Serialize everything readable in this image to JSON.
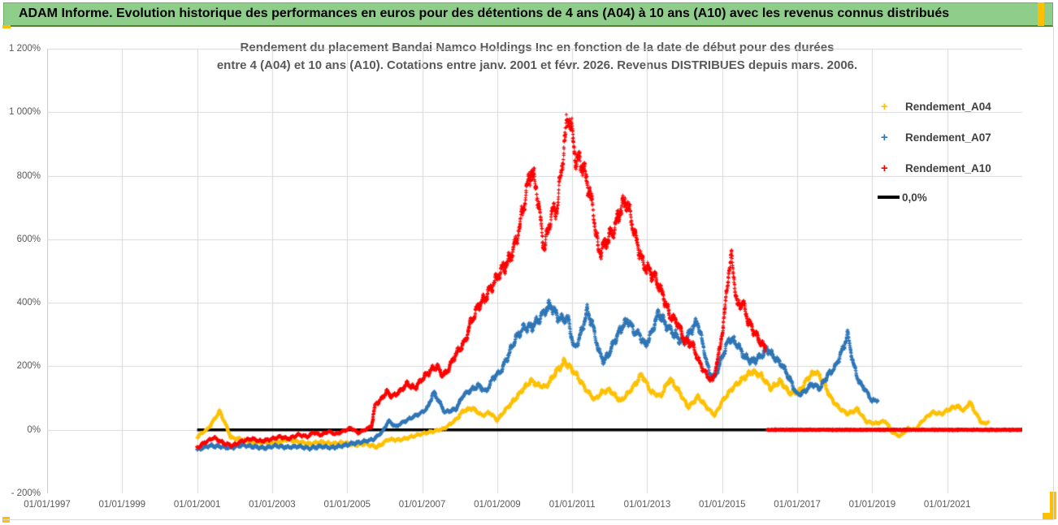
{
  "header": {
    "title": "ADAM Informe. Evolution historique des performances en euros pour des détentions de 4 ans (A04) à 10 ans (A10) avec les revenus connus distribués"
  },
  "chart": {
    "title_line1": "Rendement du placement Bandai Namco Holdings Inc en fonction de la date de début pour des durées",
    "title_line2": "entre 4 (A04) et 10 ans (A10). Cotations entre janv. 2001 et févr. 2026. Revenus DISTRIBUES depuis mars. 2006."
  },
  "colors": {
    "header_green": "#8FCE8A",
    "accent_gold": "#FFC000",
    "series_a04": "#FFC000",
    "series_a07": "#2E75B6",
    "series_a10": "#FF0000",
    "zero_line": "#000000",
    "gridline": "#D9D9D9",
    "axis_text": "#595959"
  },
  "chart_data": {
    "type": "scatter",
    "title": "Rendement du placement Bandai Namco Holdings Inc en fonction de la date de début pour des durées entre 4 (A04) et 10 ans (A10). Cotations entre janv. 2001 et févr. 2026. Revenus DISTRIBUES depuis mars. 2006.",
    "legend_position": "right",
    "grid": true,
    "x_axis": {
      "min_year": 1997,
      "max_year": 2023,
      "tick_interval_years": 2,
      "tick_years": [
        1997,
        1999,
        2001,
        2003,
        2005,
        2007,
        2009,
        2011,
        2013,
        2015,
        2017,
        2019,
        2021
      ],
      "tick_labels": [
        "01/01/1997",
        "01/01/1999",
        "01/01/2001",
        "01/01/2003",
        "01/01/2005",
        "01/01/2007",
        "01/01/2009",
        "01/01/2011",
        "01/01/2013",
        "01/01/2015",
        "01/01/2017",
        "01/01/2019",
        "01/01/2021"
      ]
    },
    "y_axis": {
      "min": -200,
      "max": 1200,
      "unit": "%",
      "tick_values": [
        1200,
        1000,
        800,
        600,
        400,
        200,
        0,
        -200
      ],
      "tick_labels": [
        "1 200%",
        "1 000%",
        "800%",
        "600%",
        "400%",
        "200%",
        "0%",
        "- 200%"
      ]
    },
    "series": [
      {
        "name": "Rendement_A04",
        "color": "#FFC000",
        "marker": "plus",
        "kind": "scatter",
        "points": [
          [
            2001.0,
            -22
          ],
          [
            2001.3,
            5
          ],
          [
            2001.6,
            58
          ],
          [
            2001.75,
            20
          ],
          [
            2001.9,
            -25
          ],
          [
            2002.2,
            -30
          ],
          [
            2002.5,
            -42
          ],
          [
            2002.8,
            -38
          ],
          [
            2003.1,
            -42
          ],
          [
            2003.4,
            -30
          ],
          [
            2003.7,
            -38
          ],
          [
            2004.0,
            -44
          ],
          [
            2004.3,
            -38
          ],
          [
            2004.6,
            -44
          ],
          [
            2004.9,
            -40
          ],
          [
            2005.2,
            -48
          ],
          [
            2005.5,
            -44
          ],
          [
            2005.8,
            -55
          ],
          [
            2006.1,
            -30
          ],
          [
            2006.4,
            -32
          ],
          [
            2006.7,
            -22
          ],
          [
            2007.0,
            -12
          ],
          [
            2007.3,
            -5
          ],
          [
            2007.6,
            5
          ],
          [
            2007.9,
            32
          ],
          [
            2008.1,
            60
          ],
          [
            2008.35,
            68
          ],
          [
            2008.6,
            45
          ],
          [
            2008.8,
            55
          ],
          [
            2009.0,
            30
          ],
          [
            2009.2,
            60
          ],
          [
            2009.5,
            100
          ],
          [
            2009.7,
            130
          ],
          [
            2009.9,
            155
          ],
          [
            2010.1,
            140
          ],
          [
            2010.3,
            135
          ],
          [
            2010.55,
            180
          ],
          [
            2010.8,
            215
          ],
          [
            2010.95,
            195
          ],
          [
            2011.1,
            175
          ],
          [
            2011.35,
            130
          ],
          [
            2011.6,
            95
          ],
          [
            2011.8,
            120
          ],
          [
            2012.0,
            125
          ],
          [
            2012.3,
            90
          ],
          [
            2012.6,
            130
          ],
          [
            2012.85,
            175
          ],
          [
            2013.1,
            120
          ],
          [
            2013.35,
            105
          ],
          [
            2013.6,
            160
          ],
          [
            2013.85,
            120
          ],
          [
            2014.1,
            70
          ],
          [
            2014.35,
            105
          ],
          [
            2014.6,
            70
          ],
          [
            2014.8,
            45
          ],
          [
            2015.0,
            90
          ],
          [
            2015.3,
            135
          ],
          [
            2015.55,
            160
          ],
          [
            2015.8,
            185
          ],
          [
            2016.05,
            170
          ],
          [
            2016.3,
            130
          ],
          [
            2016.55,
            155
          ],
          [
            2016.8,
            115
          ],
          [
            2017.05,
            120
          ],
          [
            2017.3,
            165
          ],
          [
            2017.5,
            185
          ],
          [
            2017.7,
            150
          ],
          [
            2017.9,
            100
          ],
          [
            2018.1,
            70
          ],
          [
            2018.35,
            50
          ],
          [
            2018.6,
            65
          ],
          [
            2018.85,
            25
          ],
          [
            2019.1,
            20
          ],
          [
            2019.35,
            28
          ],
          [
            2019.55,
            -10
          ],
          [
            2019.75,
            -20
          ],
          [
            2019.95,
            5
          ],
          [
            2020.15,
            0
          ],
          [
            2020.35,
            30
          ],
          [
            2020.6,
            55
          ],
          [
            2020.85,
            50
          ],
          [
            2021.05,
            65
          ],
          [
            2021.25,
            75
          ],
          [
            2021.45,
            60
          ],
          [
            2021.6,
            88
          ],
          [
            2021.75,
            55
          ],
          [
            2021.9,
            25
          ],
          [
            2022.0,
            18
          ],
          [
            2022.1,
            28
          ]
        ]
      },
      {
        "name": "Rendement_A07",
        "color": "#2E75B6",
        "marker": "plus",
        "kind": "scatter",
        "points": [
          [
            2001.0,
            -63
          ],
          [
            2001.3,
            -50
          ],
          [
            2001.6,
            -52
          ],
          [
            2001.9,
            -57
          ],
          [
            2002.2,
            -48
          ],
          [
            2002.5,
            -53
          ],
          [
            2002.8,
            -57
          ],
          [
            2003.1,
            -50
          ],
          [
            2003.4,
            -55
          ],
          [
            2003.7,
            -52
          ],
          [
            2004.0,
            -58
          ],
          [
            2004.3,
            -52
          ],
          [
            2004.6,
            -56
          ],
          [
            2004.9,
            -50
          ],
          [
            2005.1,
            -44
          ],
          [
            2005.4,
            -38
          ],
          [
            2005.7,
            -30
          ],
          [
            2005.95,
            -5
          ],
          [
            2006.1,
            28
          ],
          [
            2006.3,
            10
          ],
          [
            2006.5,
            25
          ],
          [
            2006.75,
            40
          ],
          [
            2007.0,
            55
          ],
          [
            2007.15,
            70
          ],
          [
            2007.3,
            118
          ],
          [
            2007.45,
            90
          ],
          [
            2007.6,
            55
          ],
          [
            2007.75,
            60
          ],
          [
            2007.9,
            65
          ],
          [
            2008.1,
            110
          ],
          [
            2008.3,
            125
          ],
          [
            2008.5,
            140
          ],
          [
            2008.7,
            120
          ],
          [
            2008.9,
            165
          ],
          [
            2009.1,
            185
          ],
          [
            2009.3,
            235
          ],
          [
            2009.5,
            290
          ],
          [
            2009.7,
            320
          ],
          [
            2009.9,
            325
          ],
          [
            2010.1,
            345
          ],
          [
            2010.3,
            380
          ],
          [
            2010.45,
            393
          ],
          [
            2010.6,
            355
          ],
          [
            2010.75,
            350
          ],
          [
            2010.9,
            345
          ],
          [
            2011.05,
            255
          ],
          [
            2011.2,
            290
          ],
          [
            2011.4,
            375
          ],
          [
            2011.55,
            330
          ],
          [
            2011.7,
            250
          ],
          [
            2011.85,
            215
          ],
          [
            2012.0,
            245
          ],
          [
            2012.15,
            285
          ],
          [
            2012.35,
            330
          ],
          [
            2012.5,
            345
          ],
          [
            2012.65,
            310
          ],
          [
            2012.8,
            300
          ],
          [
            2012.95,
            265
          ],
          [
            2013.1,
            300
          ],
          [
            2013.3,
            370
          ],
          [
            2013.5,
            330
          ],
          [
            2013.7,
            305
          ],
          [
            2013.85,
            285
          ],
          [
            2014.0,
            275
          ],
          [
            2014.2,
            320
          ],
          [
            2014.35,
            340
          ],
          [
            2014.5,
            260
          ],
          [
            2014.65,
            180
          ],
          [
            2014.8,
            165
          ],
          [
            2015.0,
            230
          ],
          [
            2015.2,
            290
          ],
          [
            2015.4,
            270
          ],
          [
            2015.6,
            230
          ],
          [
            2015.8,
            215
          ],
          [
            2016.0,
            230
          ],
          [
            2016.2,
            255
          ],
          [
            2016.4,
            225
          ],
          [
            2016.6,
            205
          ],
          [
            2016.8,
            160
          ],
          [
            2017.0,
            110
          ],
          [
            2017.2,
            120
          ],
          [
            2017.4,
            145
          ],
          [
            2017.6,
            130
          ],
          [
            2017.8,
            170
          ],
          [
            2018.0,
            195
          ],
          [
            2018.2,
            250
          ],
          [
            2018.35,
            300
          ],
          [
            2018.5,
            205
          ],
          [
            2018.65,
            150
          ],
          [
            2018.8,
            130
          ],
          [
            2019.0,
            90
          ],
          [
            2019.15,
            95
          ]
        ]
      },
      {
        "name": "Rendement_A10",
        "color": "#FF0000",
        "marker": "plus",
        "kind": "scatter",
        "points": [
          [
            2001.0,
            -57
          ],
          [
            2001.2,
            -40
          ],
          [
            2001.45,
            -24
          ],
          [
            2001.7,
            -42
          ],
          [
            2001.95,
            -50
          ],
          [
            2002.2,
            -35
          ],
          [
            2002.45,
            -28
          ],
          [
            2002.7,
            -36
          ],
          [
            2002.95,
            -30
          ],
          [
            2003.2,
            -22
          ],
          [
            2003.45,
            -28
          ],
          [
            2003.7,
            -15
          ],
          [
            2003.95,
            -22
          ],
          [
            2004.1,
            -8
          ],
          [
            2004.3,
            -16
          ],
          [
            2004.5,
            -5
          ],
          [
            2004.7,
            -14
          ],
          [
            2004.9,
            -4
          ],
          [
            2005.1,
            6
          ],
          [
            2005.3,
            -10
          ],
          [
            2005.5,
            2
          ],
          [
            2005.65,
            10
          ],
          [
            2005.75,
            80
          ],
          [
            2005.9,
            95
          ],
          [
            2006.05,
            120
          ],
          [
            2006.2,
            105
          ],
          [
            2006.4,
            120
          ],
          [
            2006.6,
            145
          ],
          [
            2006.8,
            130
          ],
          [
            2007.0,
            160
          ],
          [
            2007.2,
            185
          ],
          [
            2007.4,
            200
          ],
          [
            2007.55,
            170
          ],
          [
            2007.7,
            190
          ],
          [
            2007.85,
            230
          ],
          [
            2008.0,
            255
          ],
          [
            2008.15,
            280
          ],
          [
            2008.3,
            340
          ],
          [
            2008.5,
            390
          ],
          [
            2008.7,
            420
          ],
          [
            2008.9,
            460
          ],
          [
            2009.1,
            500
          ],
          [
            2009.3,
            530
          ],
          [
            2009.5,
            590
          ],
          [
            2009.7,
            700
          ],
          [
            2009.9,
            820
          ],
          [
            2010.05,
            760
          ],
          [
            2010.25,
            570
          ],
          [
            2010.45,
            680
          ],
          [
            2010.6,
            700
          ],
          [
            2010.75,
            860
          ],
          [
            2010.9,
            1000
          ],
          [
            2011.0,
            930
          ],
          [
            2011.1,
            850
          ],
          [
            2011.25,
            840
          ],
          [
            2011.4,
            780
          ],
          [
            2011.55,
            700
          ],
          [
            2011.7,
            560
          ],
          [
            2011.85,
            580
          ],
          [
            2012.0,
            610
          ],
          [
            2012.15,
            640
          ],
          [
            2012.3,
            700
          ],
          [
            2012.45,
            720
          ],
          [
            2012.6,
            650
          ],
          [
            2012.75,
            580
          ],
          [
            2012.9,
            520
          ],
          [
            2013.05,
            500
          ],
          [
            2013.2,
            480
          ],
          [
            2013.4,
            430
          ],
          [
            2013.6,
            360
          ],
          [
            2013.8,
            340
          ],
          [
            2014.0,
            280
          ],
          [
            2014.2,
            270
          ],
          [
            2014.4,
            210
          ],
          [
            2014.6,
            170
          ],
          [
            2014.75,
            155
          ],
          [
            2014.9,
            230
          ],
          [
            2015.05,
            350
          ],
          [
            2015.15,
            480
          ],
          [
            2015.25,
            545
          ],
          [
            2015.4,
            390
          ],
          [
            2015.55,
            400
          ],
          [
            2015.7,
            340
          ],
          [
            2015.85,
            310
          ],
          [
            2016.0,
            280
          ],
          [
            2016.15,
            255
          ]
        ],
        "zero_tail": {
          "from": 2016.2,
          "to": 2023.0,
          "value": 0
        }
      },
      {
        "name": "0,0%",
        "color": "#000000",
        "marker": "line",
        "kind": "line",
        "points": [
          [
            2001.0,
            0
          ],
          [
            2023.0,
            0
          ]
        ]
      }
    ]
  }
}
